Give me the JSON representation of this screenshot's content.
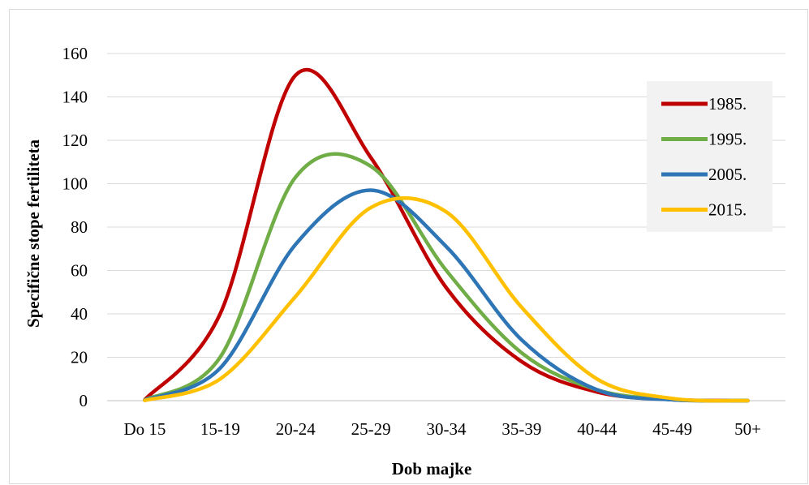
{
  "chart_data": {
    "type": "line",
    "smooth": true,
    "title": "",
    "xlabel": "Dob majke",
    "ylabel": "Specifične stope fertiliteta",
    "categories": [
      "Do 15",
      "15-19",
      "20-24",
      "25-29",
      "30-34",
      "35-39",
      "40-44",
      "45-49",
      "50+"
    ],
    "ylim": [
      0,
      160
    ],
    "yticks": [
      0,
      20,
      40,
      60,
      80,
      100,
      120,
      140,
      160
    ],
    "grid": "horizontal",
    "legend_position": "right",
    "series": [
      {
        "name": "1985.",
        "color": "#c00000",
        "values": [
          0.4,
          40,
          150,
          112,
          52,
          18,
          4,
          0.5,
          0
        ]
      },
      {
        "name": "1995.",
        "color": "#70ad47",
        "values": [
          0.3,
          20,
          103,
          108,
          60,
          22,
          5,
          0.5,
          0
        ]
      },
      {
        "name": "2005.",
        "color": "#2e75b6",
        "values": [
          0.2,
          15,
          72,
          97,
          71,
          28,
          5,
          0.4,
          0
        ]
      },
      {
        "name": "2015.",
        "color": "#ffc000",
        "values": [
          0.1,
          10,
          48,
          89,
          87,
          43,
          10,
          1,
          0
        ]
      }
    ]
  }
}
